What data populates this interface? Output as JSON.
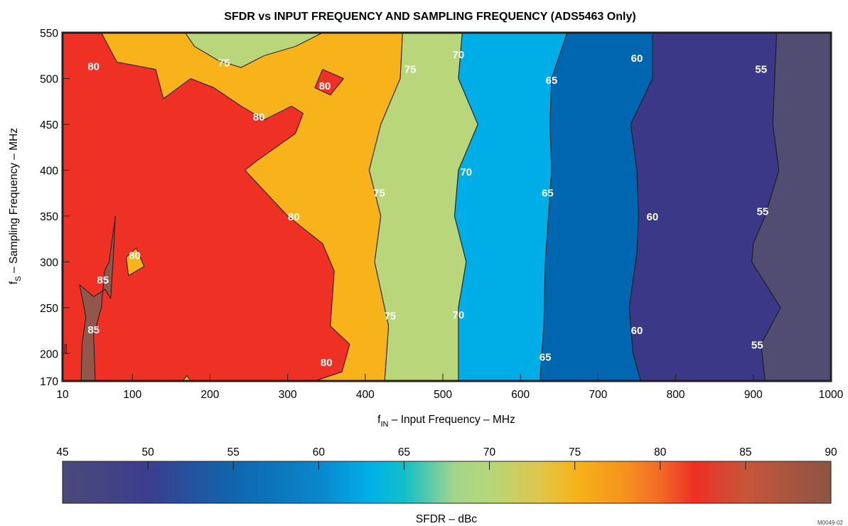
{
  "chart_data": {
    "type": "contour",
    "title": "SFDR vs INPUT FREQUENCY AND SAMPLING FREQUENCY (ADS5463 Only)",
    "xlabel": {
      "main": "f",
      "sub": "IN",
      "rest": " – Input Frequency – MHz"
    },
    "ylabel": {
      "main": "f",
      "sub": "S",
      "rest": " – Sampling Frequency – MHz"
    },
    "xlim": [
      10,
      1000
    ],
    "ylim": [
      170,
      550
    ],
    "x_ticks": [
      10,
      100,
      200,
      300,
      400,
      500,
      600,
      700,
      800,
      900,
      1000
    ],
    "y_ticks": [
      170,
      200,
      250,
      300,
      350,
      400,
      450,
      500,
      550
    ],
    "colorbar": {
      "label": "SFDR – dBc",
      "range": [
        45,
        90
      ],
      "ticks": [
        45,
        50,
        55,
        60,
        65,
        70,
        75,
        80,
        85,
        90
      ],
      "stops": [
        {
          "v": 45,
          "color": "#4a4a7a"
        },
        {
          "v": 50,
          "color": "#3b3d8e"
        },
        {
          "v": 55,
          "color": "#0f66ad"
        },
        {
          "v": 60,
          "color": "#0a86cc"
        },
        {
          "v": 63,
          "color": "#00b0e8"
        },
        {
          "v": 65,
          "color": "#11bfc8"
        },
        {
          "v": 68,
          "color": "#a5d58a"
        },
        {
          "v": 70,
          "color": "#b5d67a"
        },
        {
          "v": 73,
          "color": "#e0c64a"
        },
        {
          "v": 75,
          "color": "#f7b41a"
        },
        {
          "v": 78,
          "color": "#f6911e"
        },
        {
          "v": 80,
          "color": "#f26a27"
        },
        {
          "v": 82,
          "color": "#ee2f24"
        },
        {
          "v": 85,
          "color": "#c8553a"
        },
        {
          "v": 90,
          "color": "#8a5545"
        }
      ]
    },
    "regions": [
      {
        "level": 55,
        "color": "#504c72",
        "points": [
          [
            920,
            550
          ],
          [
            1000,
            550
          ],
          [
            1000,
            170
          ],
          [
            915,
            170
          ],
          [
            910,
            210
          ],
          [
            935,
            250
          ],
          [
            898,
            300
          ],
          [
            900,
            320
          ],
          [
            915,
            350
          ],
          [
            933,
            400
          ],
          [
            925,
            450
          ],
          [
            930,
            550
          ]
        ]
      },
      {
        "level": 60,
        "color": "#3b3987",
        "points": [
          [
            770,
            550
          ],
          [
            920,
            550
          ],
          [
            930,
            550
          ],
          [
            925,
            450
          ],
          [
            933,
            400
          ],
          [
            915,
            350
          ],
          [
            900,
            320
          ],
          [
            898,
            300
          ],
          [
            935,
            250
          ],
          [
            910,
            210
          ],
          [
            915,
            170
          ],
          [
            755,
            170
          ],
          [
            745,
            200
          ],
          [
            740,
            250
          ],
          [
            750,
            310
          ],
          [
            752,
            350
          ],
          [
            750,
            400
          ],
          [
            742,
            450
          ],
          [
            770,
            500
          ]
        ]
      },
      {
        "level": 65,
        "color": "#0066af",
        "points": [
          [
            660,
            550
          ],
          [
            770,
            550
          ],
          [
            770,
            500
          ],
          [
            742,
            450
          ],
          [
            750,
            400
          ],
          [
            752,
            350
          ],
          [
            750,
            310
          ],
          [
            740,
            250
          ],
          [
            745,
            200
          ],
          [
            755,
            170
          ],
          [
            625,
            170
          ],
          [
            630,
            230
          ],
          [
            632,
            300
          ],
          [
            640,
            400
          ],
          [
            638,
            450
          ],
          [
            640,
            500
          ]
        ]
      },
      {
        "level": 70,
        "color": "#00aee7",
        "points": [
          [
            525,
            550
          ],
          [
            660,
            550
          ],
          [
            640,
            500
          ],
          [
            638,
            450
          ],
          [
            640,
            400
          ],
          [
            632,
            300
          ],
          [
            630,
            230
          ],
          [
            625,
            170
          ],
          [
            520,
            170
          ],
          [
            520,
            250
          ],
          [
            530,
            300
          ],
          [
            515,
            350
          ],
          [
            520,
            400
          ],
          [
            545,
            450
          ],
          [
            520,
            500
          ]
        ]
      },
      {
        "level": 75,
        "color": "#b9d77a",
        "points": [
          [
            448,
            550
          ],
          [
            525,
            550
          ],
          [
            520,
            500
          ],
          [
            545,
            450
          ],
          [
            520,
            400
          ],
          [
            515,
            350
          ],
          [
            530,
            300
          ],
          [
            520,
            250
          ],
          [
            520,
            170
          ],
          [
            425,
            170
          ],
          [
            430,
            230
          ],
          [
            412,
            300
          ],
          [
            420,
            350
          ],
          [
            405,
            400
          ],
          [
            420,
            450
          ],
          [
            445,
            500
          ]
        ]
      },
      {
        "level": 80,
        "color": "#f8b21a",
        "points": [
          [
            10,
            550
          ],
          [
            448,
            550
          ],
          [
            445,
            500
          ],
          [
            420,
            450
          ],
          [
            405,
            400
          ],
          [
            420,
            350
          ],
          [
            412,
            300
          ],
          [
            430,
            230
          ],
          [
            425,
            170
          ],
          [
            10,
            170
          ]
        ]
      },
      {
        "level": 75,
        "color": "#b9d77a",
        "points": [
          [
            168,
            550
          ],
          [
            345,
            550
          ],
          [
            310,
            535
          ],
          [
            270,
            525
          ],
          [
            240,
            512
          ],
          [
            210,
            520
          ],
          [
            180,
            535
          ]
        ]
      },
      {
        "level": 80,
        "color": "#ee3124",
        "points": [
          [
            10,
            550
          ],
          [
            60,
            550
          ],
          [
            80,
            518
          ],
          [
            130,
            510
          ],
          [
            140,
            478
          ],
          [
            175,
            500
          ],
          [
            205,
            490
          ],
          [
            240,
            470
          ],
          [
            270,
            455
          ],
          [
            305,
            470
          ],
          [
            320,
            462
          ],
          [
            310,
            440
          ],
          [
            260,
            410
          ],
          [
            245,
            400
          ],
          [
            300,
            350
          ],
          [
            345,
            320
          ],
          [
            360,
            290
          ],
          [
            355,
            230
          ],
          [
            380,
            210
          ],
          [
            370,
            180
          ],
          [
            335,
            170
          ],
          [
            10,
            170
          ]
        ]
      },
      {
        "level": 80,
        "color": "#ee3124",
        "points": [
          [
            335,
            490
          ],
          [
            345,
            510
          ],
          [
            372,
            500
          ],
          [
            355,
            482
          ]
        ]
      },
      {
        "level": 75,
        "color": "#f8b21a",
        "points": [
          [
            92,
            305
          ],
          [
            105,
            315
          ],
          [
            115,
            295
          ],
          [
            95,
            285
          ]
        ]
      },
      {
        "level": 85,
        "color": "#91574a",
        "points": [
          [
            34,
            170
          ],
          [
            35,
            210
          ],
          [
            40,
            240
          ],
          [
            32,
            275
          ],
          [
            50,
            262
          ],
          [
            65,
            270
          ],
          [
            72,
            260
          ],
          [
            75,
            300
          ],
          [
            78,
            350
          ],
          [
            70,
            300
          ],
          [
            64,
            290
          ],
          [
            60,
            250
          ],
          [
            50,
            220
          ],
          [
            52,
            170
          ]
        ]
      },
      {
        "level": 85,
        "color": "#91574a",
        "points": [
          [
            13,
            210
          ],
          [
            15,
            210
          ],
          [
            15,
            200
          ],
          [
            13,
            200
          ]
        ]
      },
      {
        "level": 75,
        "color": "#f8b21a",
        "points": [
          [
            165,
            170
          ],
          [
            175,
            170
          ],
          [
            170,
            176
          ]
        ]
      }
    ],
    "contour_labels": [
      {
        "text": "80",
        "x": 50,
        "y": 513
      },
      {
        "text": "75",
        "x": 218,
        "y": 517
      },
      {
        "text": "80",
        "x": 348,
        "y": 492
      },
      {
        "text": "75",
        "x": 458,
        "y": 510
      },
      {
        "text": "70",
        "x": 520,
        "y": 526
      },
      {
        "text": "65",
        "x": 640,
        "y": 498
      },
      {
        "text": "60",
        "x": 750,
        "y": 522
      },
      {
        "text": "55",
        "x": 910,
        "y": 510
      },
      {
        "text": "80",
        "x": 263,
        "y": 458
      },
      {
        "text": "70",
        "x": 530,
        "y": 398
      },
      {
        "text": "75",
        "x": 418,
        "y": 375
      },
      {
        "text": "65",
        "x": 635,
        "y": 375
      },
      {
        "text": "80",
        "x": 308,
        "y": 349
      },
      {
        "text": "60",
        "x": 770,
        "y": 349
      },
      {
        "text": "55",
        "x": 912,
        "y": 355
      },
      {
        "text": "80",
        "x": 103,
        "y": 307
      },
      {
        "text": "85",
        "x": 62,
        "y": 280
      },
      {
        "text": "75",
        "x": 432,
        "y": 241
      },
      {
        "text": "70",
        "x": 520,
        "y": 242
      },
      {
        "text": "85",
        "x": 50,
        "y": 226
      },
      {
        "text": "60",
        "x": 750,
        "y": 225
      },
      {
        "text": "65",
        "x": 632,
        "y": 196
      },
      {
        "text": "55",
        "x": 905,
        "y": 209
      },
      {
        "text": "80",
        "x": 350,
        "y": 190
      }
    ]
  },
  "figure_code": "M0049-02"
}
